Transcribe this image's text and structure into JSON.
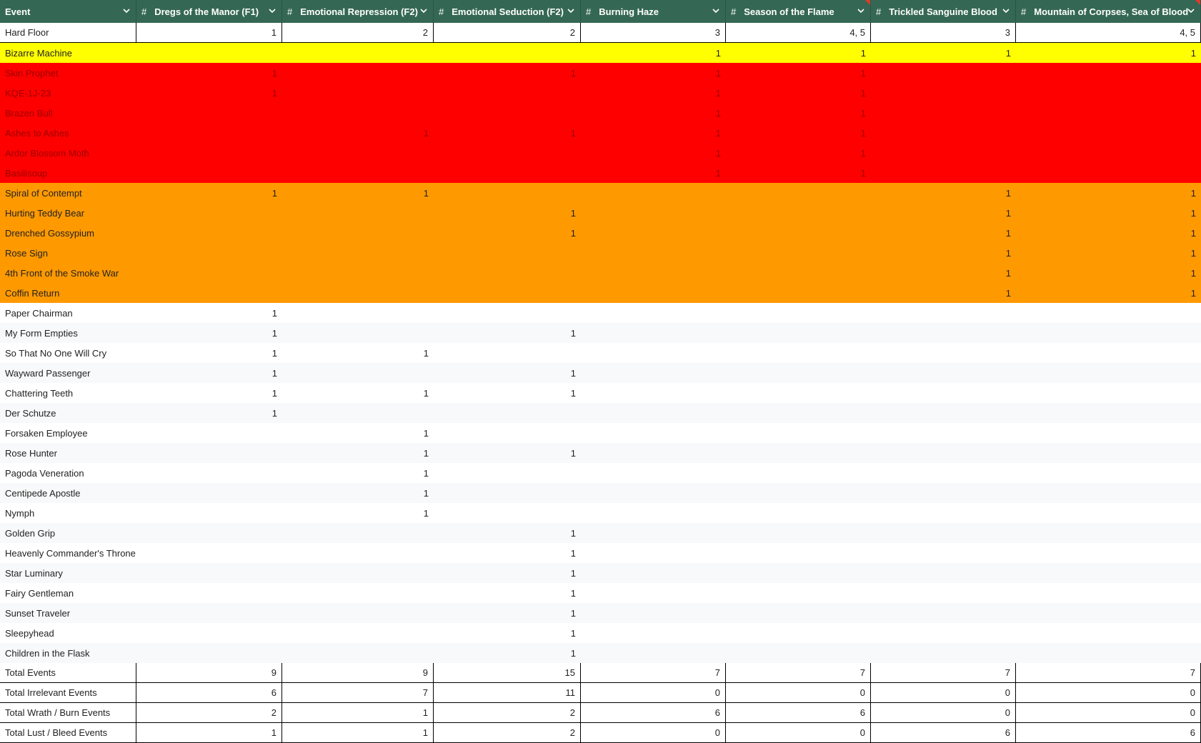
{
  "table": {
    "header_fill": "#356854",
    "columns": [
      {
        "label": "Event"
      },
      {
        "label": "Dregs of the Manor (F1)",
        "icon": "#"
      },
      {
        "label": "Emotional Repression (F2)",
        "icon": "#"
      },
      {
        "label": "Emotional Seduction (F2)",
        "icon": "#"
      },
      {
        "label": "Burning Haze",
        "icon": "#"
      },
      {
        "label": "Season of the Flame",
        "icon": "#"
      },
      {
        "label": "Trickled Sanguine Blood",
        "icon": "#"
      },
      {
        "label": "Mountain of Corpses, Sea of Blood",
        "icon": "#"
      }
    ],
    "rows": [
      {
        "label": "Hard Floor",
        "values": [
          1,
          2,
          2,
          3,
          "4, 5",
          3,
          "4, 5"
        ],
        "fill": "#ffffff",
        "outlined": true
      },
      {
        "label": "Bizarre Machine",
        "values": [
          null,
          null,
          null,
          1,
          1,
          1,
          1
        ],
        "fill": "#ffff00"
      },
      {
        "label": "Skin Prophet",
        "values": [
          1,
          null,
          1,
          1,
          1,
          null,
          null
        ],
        "fill": "#ff0000",
        "text_color": "#9a0000"
      },
      {
        "label": "KQE-1J-23",
        "values": [
          1,
          null,
          null,
          1,
          1,
          null,
          null
        ],
        "fill": "#ff0000",
        "text_color": "#9a0000"
      },
      {
        "label": "Brazen Bull",
        "values": [
          null,
          null,
          null,
          1,
          1,
          null,
          null
        ],
        "fill": "#ff0000",
        "text_color": "#9a0000"
      },
      {
        "label": "Ashes to Ashes",
        "values": [
          null,
          1,
          1,
          1,
          1,
          null,
          null
        ],
        "fill": "#ff0000",
        "text_color": "#9a0000"
      },
      {
        "label": "Ardor Blossom Moth",
        "values": [
          null,
          null,
          null,
          1,
          1,
          null,
          null
        ],
        "fill": "#ff0000",
        "text_color": "#9a0000"
      },
      {
        "label": "Basilisoup",
        "values": [
          null,
          null,
          null,
          1,
          1,
          null,
          null
        ],
        "fill": "#ff0000",
        "text_color": "#9a0000"
      },
      {
        "label": "Spiral of Contempt",
        "values": [
          1,
          1,
          null,
          null,
          null,
          1,
          1
        ],
        "fill": "#ff9900"
      },
      {
        "label": "Hurting Teddy Bear",
        "values": [
          null,
          null,
          1,
          null,
          null,
          1,
          1
        ],
        "fill": "#ff9900"
      },
      {
        "label": "Drenched Gossypium",
        "values": [
          null,
          null,
          1,
          null,
          null,
          1,
          1
        ],
        "fill": "#ff9900"
      },
      {
        "label": "Rose Sign",
        "values": [
          null,
          null,
          null,
          null,
          null,
          1,
          1
        ],
        "fill": "#ff9900"
      },
      {
        "label": "4th Front of the Smoke War",
        "values": [
          null,
          null,
          null,
          null,
          null,
          1,
          1
        ],
        "fill": "#ff9900"
      },
      {
        "label": "Coffin Return",
        "values": [
          null,
          null,
          null,
          null,
          null,
          1,
          1
        ],
        "fill": "#ff9900"
      },
      {
        "label": "Paper Chairman",
        "values": [
          1,
          null,
          null,
          null,
          null,
          null,
          null
        ],
        "fill": "#ffffff"
      },
      {
        "label": "My Form Empties",
        "values": [
          1,
          null,
          1,
          null,
          null,
          null,
          null
        ],
        "fill": "#f8f9fa"
      },
      {
        "label": "So That No One Will Cry",
        "values": [
          1,
          1,
          null,
          null,
          null,
          null,
          null
        ],
        "fill": "#ffffff"
      },
      {
        "label": "Wayward Passenger",
        "values": [
          1,
          null,
          1,
          null,
          null,
          null,
          null
        ],
        "fill": "#f8f9fa"
      },
      {
        "label": "Chattering Teeth",
        "values": [
          1,
          1,
          1,
          null,
          null,
          null,
          null
        ],
        "fill": "#ffffff"
      },
      {
        "label": "Der Schutze",
        "values": [
          1,
          null,
          null,
          null,
          null,
          null,
          null
        ],
        "fill": "#f8f9fa"
      },
      {
        "label": "Forsaken Employee",
        "values": [
          null,
          1,
          null,
          null,
          null,
          null,
          null
        ],
        "fill": "#ffffff"
      },
      {
        "label": "Rose Hunter",
        "values": [
          null,
          1,
          1,
          null,
          null,
          null,
          null
        ],
        "fill": "#f8f9fa"
      },
      {
        "label": "Pagoda Veneration",
        "values": [
          null,
          1,
          null,
          null,
          null,
          null,
          null
        ],
        "fill": "#ffffff"
      },
      {
        "label": "Centipede Apostle",
        "values": [
          null,
          1,
          null,
          null,
          null,
          null,
          null
        ],
        "fill": "#f8f9fa"
      },
      {
        "label": "Nymph",
        "values": [
          null,
          1,
          null,
          null,
          null,
          null,
          null
        ],
        "fill": "#ffffff"
      },
      {
        "label": "Golden Grip",
        "values": [
          null,
          null,
          1,
          null,
          null,
          null,
          null
        ],
        "fill": "#f8f9fa"
      },
      {
        "label": "Heavenly Commander's Throne",
        "values": [
          null,
          null,
          1,
          null,
          null,
          null,
          null
        ],
        "fill": "#ffffff"
      },
      {
        "label": "Star Luminary",
        "values": [
          null,
          null,
          1,
          null,
          null,
          null,
          null
        ],
        "fill": "#f8f9fa"
      },
      {
        "label": "Fairy Gentleman",
        "values": [
          null,
          null,
          1,
          null,
          null,
          null,
          null
        ],
        "fill": "#ffffff"
      },
      {
        "label": "Sunset Traveler",
        "values": [
          null,
          null,
          1,
          null,
          null,
          null,
          null
        ],
        "fill": "#f8f9fa"
      },
      {
        "label": "Sleepyhead",
        "values": [
          null,
          null,
          1,
          null,
          null,
          null,
          null
        ],
        "fill": "#ffffff"
      },
      {
        "label": "Children in the Flask",
        "values": [
          null,
          null,
          1,
          null,
          null,
          null,
          null
        ],
        "fill": "#f8f9fa"
      },
      {
        "label": "Total Events",
        "values": [
          9,
          9,
          15,
          7,
          7,
          7,
          7
        ],
        "fill": "#ffffff",
        "outlined": true
      },
      {
        "label": "Total Irrelevant Events",
        "values": [
          6,
          7,
          11,
          0,
          0,
          0,
          0
        ],
        "fill": "#ffffff",
        "outlined": true
      },
      {
        "label": "Total Wrath / Burn Events",
        "values": [
          2,
          1,
          2,
          6,
          6,
          0,
          0
        ],
        "fill": "#ffffff",
        "outlined": true
      },
      {
        "label": "Total Lust / Bleed Events",
        "values": [
          1,
          1,
          2,
          0,
          0,
          6,
          6
        ],
        "fill": "#ffffff",
        "outlined": true
      }
    ]
  }
}
